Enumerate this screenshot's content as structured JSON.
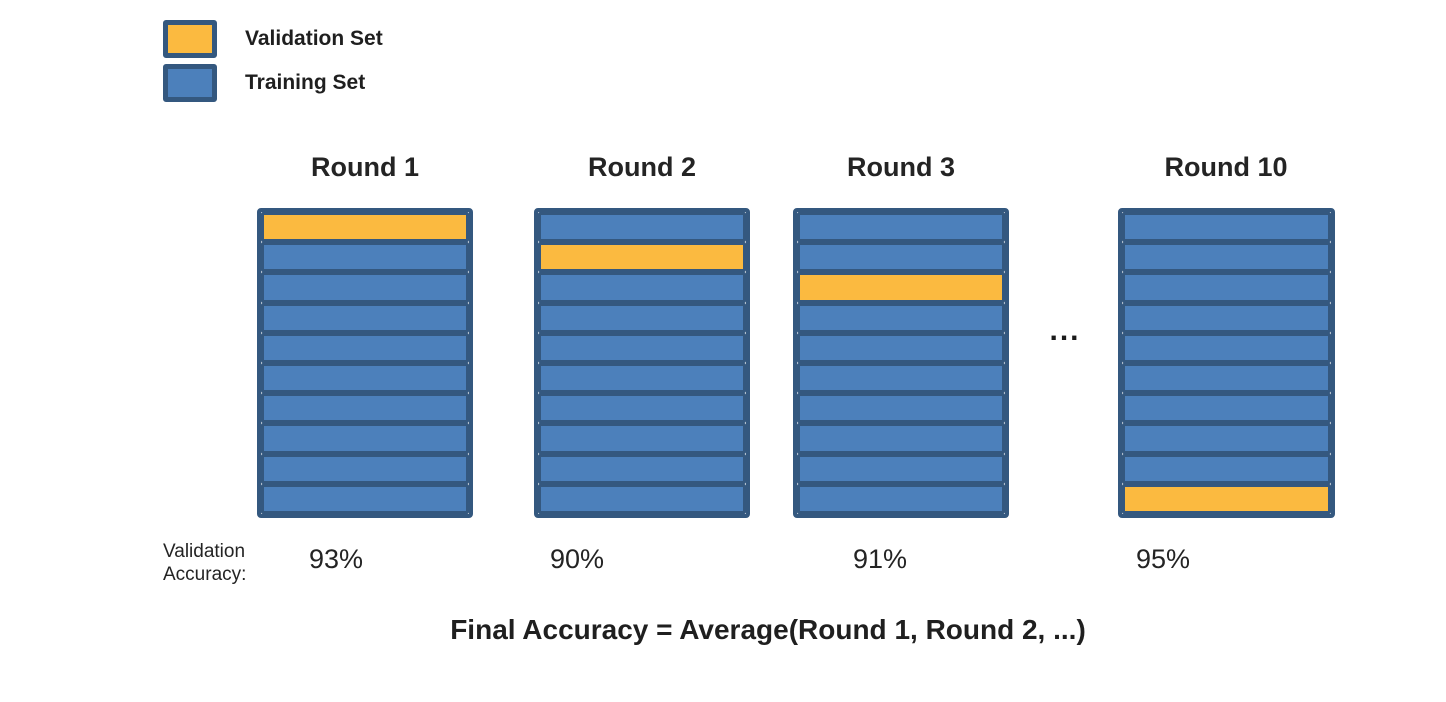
{
  "legend": {
    "items": [
      {
        "name": "validation-set",
        "label": "Validation Set",
        "color": "#FBBA40"
      },
      {
        "name": "training-set",
        "label": "Training Set",
        "color": "#4C80BB"
      }
    ]
  },
  "num_folds": 10,
  "rounds": [
    {
      "label": "Round 1",
      "validation_row": 1,
      "accuracy": "93%"
    },
    {
      "label": "Round 2",
      "validation_row": 2,
      "accuracy": "90%"
    },
    {
      "label": "Round 3",
      "validation_row": 3,
      "accuracy": "91%"
    },
    {
      "label": "Round 10",
      "validation_row": 10,
      "accuracy": "95%"
    }
  ],
  "ellipsis": "...",
  "accuracy_caption": {
    "line1": "Validation",
    "line2": "Accuracy:"
  },
  "formula": "Final Accuracy  =  Average(Round 1, Round 2, ...)",
  "colors": {
    "validation": "#FBBA40",
    "training": "#4C80BB",
    "border": "#34587F"
  }
}
